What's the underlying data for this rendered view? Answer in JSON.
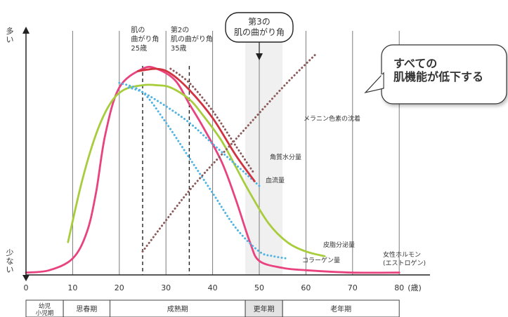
{
  "chart_data": {
    "type": "line",
    "title": "",
    "xlabel": "(歳)",
    "ylabel_high": "多い",
    "ylabel_low": "少ない",
    "xlim": [
      0,
      85
    ],
    "ylim": [
      0,
      100
    ],
    "x_ticks": [
      0,
      10,
      20,
      30,
      40,
      50,
      60,
      70,
      80
    ],
    "stage_dividers": [
      25,
      35
    ],
    "milestones": [
      {
        "label": "肌の\n曲がり角\n25歳",
        "x": 25
      },
      {
        "label": "第2の\n肌の曲がり角\n35歳",
        "x": 35
      },
      {
        "label": "第3の\n肌の曲がり角",
        "x": 50
      }
    ],
    "callout": "すべての\n肌機能が低下する",
    "series": [
      {
        "name": "女性ホルモン\n(エストロゲン)",
        "color": "#e8427f",
        "style": "solid",
        "x": [
          0,
          5,
          10,
          13,
          15,
          17,
          20,
          25,
          28,
          32,
          35,
          38,
          42,
          45,
          48,
          50,
          55,
          60,
          70,
          80
        ],
        "y": [
          1,
          2,
          7,
          18,
          35,
          60,
          80,
          88,
          88,
          83,
          73,
          63,
          48,
          32,
          14,
          6,
          3,
          2,
          1,
          1
        ]
      },
      {
        "name": "皮脂分泌量",
        "color": "#a8cd3c",
        "style": "solid",
        "x": [
          9,
          12,
          15,
          18,
          21,
          25,
          28,
          31,
          35,
          38,
          42,
          45,
          48,
          52,
          56,
          60,
          64
        ],
        "y": [
          14,
          40,
          60,
          73,
          79,
          81,
          81,
          80,
          75,
          68,
          57,
          46,
          35,
          22,
          14,
          10,
          8
        ]
      },
      {
        "name": "角質水分量",
        "color": "#4fb3e3",
        "style": "dotted",
        "x": [
          22,
          25,
          30,
          35,
          40,
          45,
          50
        ],
        "y": [
          80,
          78,
          72,
          65,
          56,
          47,
          38
        ]
      },
      {
        "name": "コラーゲン量",
        "color": "#4fb3e3",
        "style": "dotted",
        "x": [
          20,
          25,
          30,
          35,
          40,
          45,
          50,
          53,
          56
        ],
        "y": [
          82,
          78,
          65,
          50,
          35,
          20,
          10,
          8,
          7
        ]
      },
      {
        "name": "血流量",
        "color": "#d23340",
        "style": "solid",
        "x": [
          24,
          28,
          31,
          35,
          40,
          45,
          49
        ],
        "y": [
          87,
          88,
          86,
          79,
          67,
          51,
          40
        ]
      },
      {
        "name": "メラニン色素の沈着",
        "color": "#8b5a5a",
        "style": "dotted",
        "x": [
          25,
          35,
          45,
          55,
          62
        ],
        "y": [
          10,
          36,
          58,
          80,
          94
        ]
      },
      {
        "name": "",
        "color": "#8b5a5a",
        "style": "dotted",
        "x": [
          31,
          35,
          40,
          45,
          49
        ],
        "y": [
          88,
          82,
          70,
          55,
          43
        ]
      }
    ],
    "life_stages": [
      {
        "label": "幼児\n小児期",
        "from": 0,
        "to": 8,
        "shaded": false
      },
      {
        "label": "思春期",
        "from": 8,
        "to": 18,
        "shaded": false
      },
      {
        "label": "成熟期",
        "from": 18,
        "to": 47,
        "shaded": false
      },
      {
        "label": "更年期",
        "from": 47,
        "to": 55,
        "shaded": true
      },
      {
        "label": "老年期",
        "from": 55,
        "to": 80,
        "shaded": false
      }
    ]
  }
}
